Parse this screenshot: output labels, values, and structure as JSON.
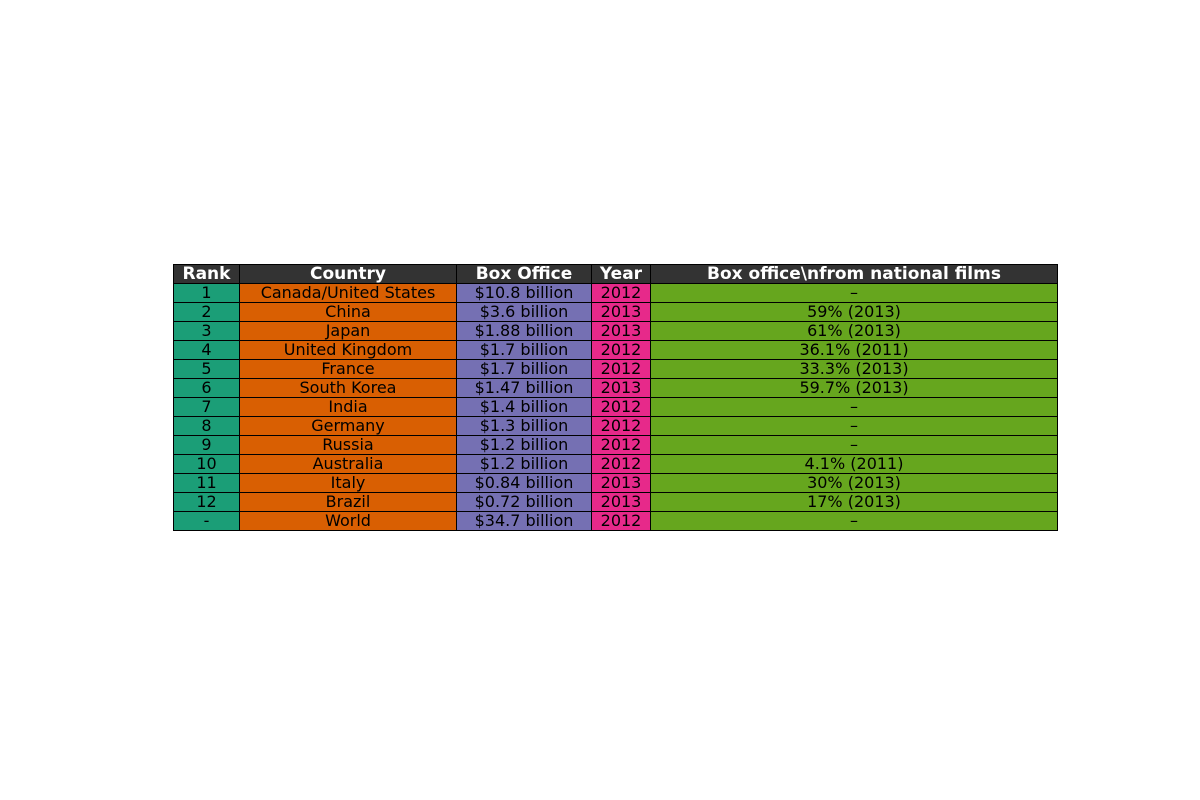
{
  "chart_data": {
    "type": "table",
    "columns": [
      "Rank",
      "Country",
      "Box Office",
      "Year",
      "Box office\\nfrom national films"
    ],
    "column_colors": [
      "#1b9e77",
      "#d95f02",
      "#7570b3",
      "#e7298a",
      "#66a61e"
    ],
    "header_color": "#333333",
    "rows": [
      [
        "1",
        "Canada/United States",
        "$10.8 billion",
        "2012",
        "–"
      ],
      [
        "2",
        "China",
        "$3.6 billion",
        "2013",
        "59% (2013)"
      ],
      [
        "3",
        "Japan",
        "$1.88 billion",
        "2013",
        "61% (2013)"
      ],
      [
        "4",
        "United Kingdom",
        "$1.7 billion",
        "2012",
        "36.1% (2011)"
      ],
      [
        "5",
        "France",
        "$1.7 billion",
        "2012",
        "33.3% (2013)"
      ],
      [
        "6",
        "South Korea",
        "$1.47 billion",
        "2013",
        "59.7% (2013)"
      ],
      [
        "7",
        "India",
        "$1.4 billion",
        "2012",
        "–"
      ],
      [
        "8",
        "Germany",
        "$1.3 billion",
        "2012",
        "–"
      ],
      [
        "9",
        "Russia",
        "$1.2 billion",
        "2012",
        "–"
      ],
      [
        "10",
        "Australia",
        "$1.2 billion",
        "2012",
        "4.1% (2011)"
      ],
      [
        "11",
        "Italy",
        "$0.84 billion",
        "2013",
        "30% (2013)"
      ],
      [
        "12",
        "Brazil",
        "$0.72 billion",
        "2013",
        "17% (2013)"
      ],
      [
        "-",
        "World",
        "$34.7 billion",
        "2012",
        "–"
      ]
    ]
  }
}
